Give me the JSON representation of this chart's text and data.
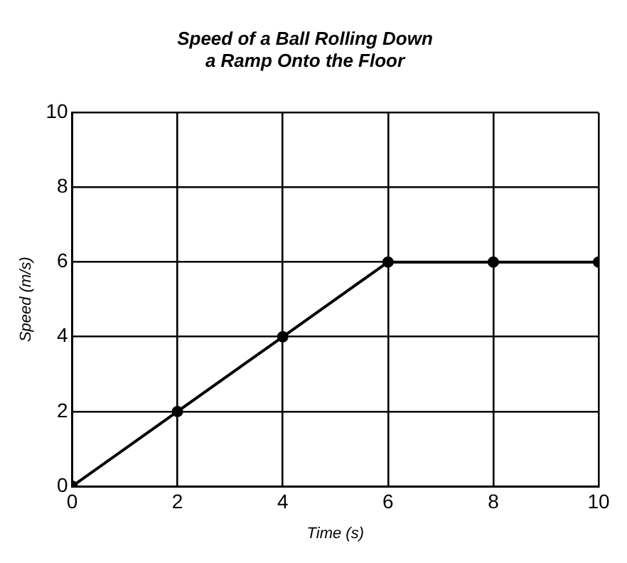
{
  "chart_data": {
    "type": "line",
    "title": "Speed of a Ball Rolling Down a Ramp Onto the Floor",
    "xlabel": "Time (s)",
    "ylabel": "Speed (m/s)",
    "x": [
      0,
      2,
      4,
      6,
      8,
      10
    ],
    "series": [
      {
        "color": "#000000",
        "values": [
          0,
          2,
          4,
          6,
          6,
          6
        ]
      }
    ],
    "xlim": [
      0,
      10
    ],
    "xticks": [
      0,
      2,
      4,
      6,
      8,
      10
    ],
    "ylim": [
      0,
      10
    ],
    "yticks": [
      0,
      2,
      4,
      6,
      8,
      10
    ],
    "grid": true,
    "legend": false,
    "marker": "circle",
    "line_style": "solid"
  }
}
